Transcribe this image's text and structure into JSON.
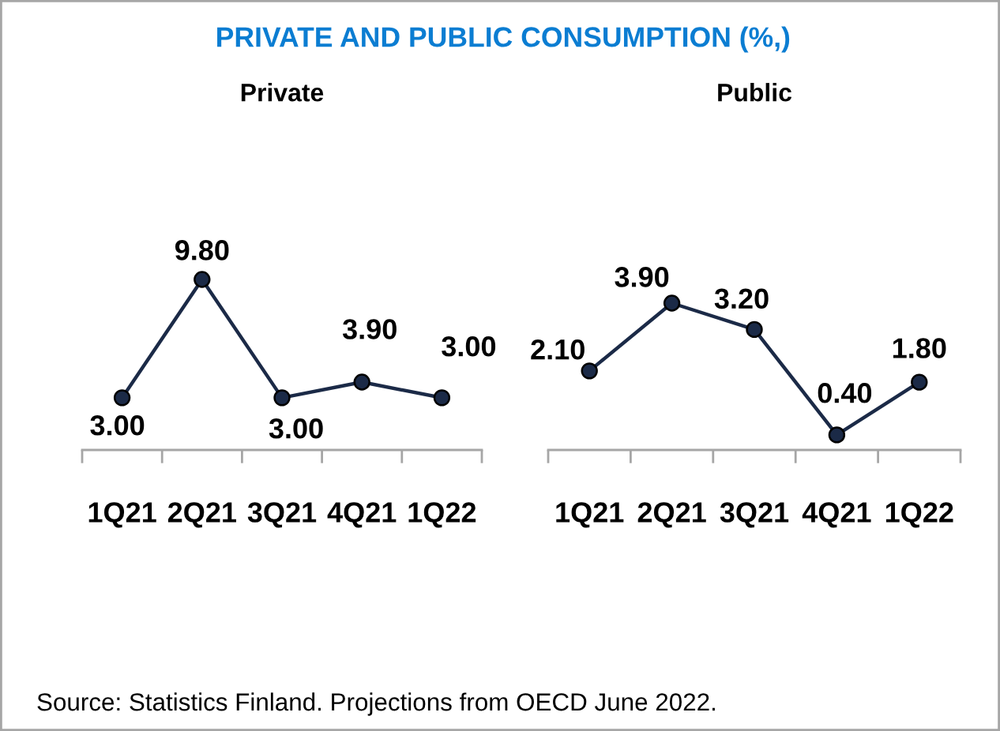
{
  "chart_data": [
    {
      "type": "line",
      "title": "PRIVATE AND PUBLIC CONSUMPTION (%,)",
      "subtitle": "Private",
      "categories": [
        "1Q21",
        "2Q21",
        "3Q21",
        "4Q21",
        "1Q22"
      ],
      "series": [
        {
          "color": "#1b2a47",
          "values": [
            3.0,
            9.8,
            3.0,
            3.9,
            3.0
          ],
          "value_labels": [
            "3.00",
            "9.80",
            "3.00",
            "3.90",
            "3.00"
          ]
        }
      ],
      "tick_labels": "x",
      "marker": "circle",
      "line_style": "solid",
      "annotations": [
        "Source: Statistics Finland. Projections from OECD June 2022."
      ]
    },
    {
      "type": "line",
      "subtitle": "Public",
      "categories": [
        "1Q21",
        "2Q21",
        "3Q21",
        "4Q21",
        "1Q22"
      ],
      "series": [
        {
          "color": "#1b2a47",
          "values": [
            2.1,
            3.9,
            3.2,
            0.4,
            1.8
          ],
          "value_labels": [
            "2.10",
            "3.90",
            "3.20",
            "0.40",
            "1.80"
          ]
        }
      ],
      "tick_labels": "x",
      "marker": "circle",
      "line_style": "solid"
    }
  ]
}
